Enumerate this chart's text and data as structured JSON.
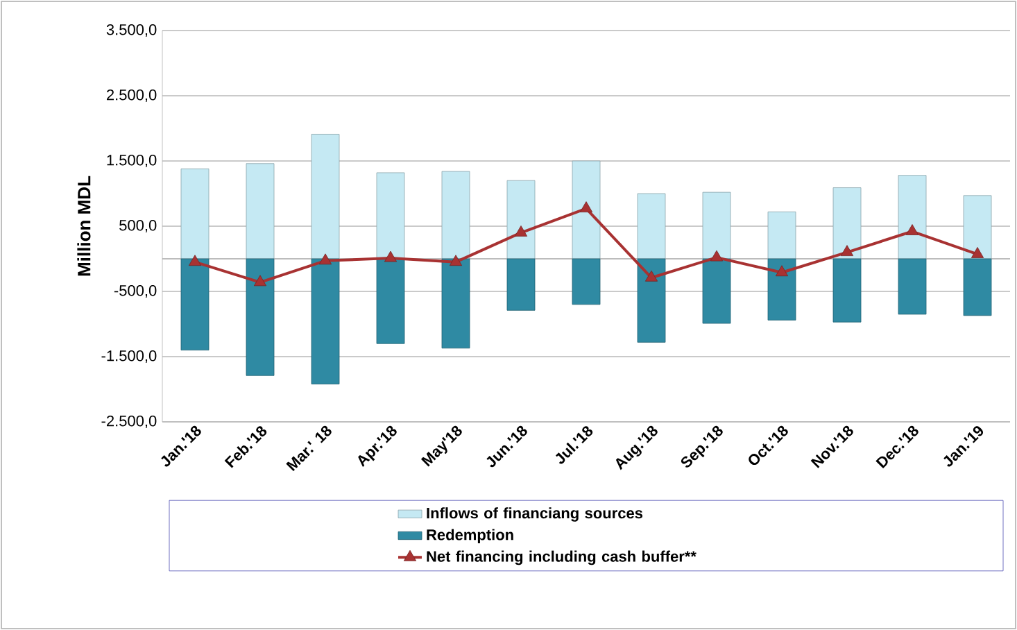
{
  "chart_data": {
    "type": "bar",
    "ylabel": "Million MDL",
    "categories": [
      "Jan.'18",
      "Feb.'18",
      "Mar.' 18",
      "Apr.'18",
      "May'18",
      "Jun.'18",
      "Jul.'18",
      "Aug.'18",
      "Sep.'18",
      "Oct.'18",
      "Nov.'18",
      "Dec.'18",
      "Jan.'19"
    ],
    "series": [
      {
        "name": "Inflows of financiang sources",
        "color": "#c5e9f3",
        "values": [
          1380,
          1460,
          1910,
          1320,
          1340,
          1200,
          1500,
          1000,
          1020,
          720,
          1090,
          1280,
          970
        ]
      },
      {
        "name": "Redemption",
        "color": "#2f8aa3",
        "values": [
          -1400,
          -1790,
          -1920,
          -1300,
          -1370,
          -790,
          -700,
          -1280,
          -990,
          -940,
          -970,
          -850,
          -870
        ]
      },
      {
        "name": "Net financing including cash buffer**",
        "type": "line",
        "marker": "triangle",
        "color": "#a83232",
        "values": [
          -50,
          -360,
          -30,
          10,
          -50,
          400,
          770,
          -290,
          20,
          -210,
          100,
          420,
          70
        ]
      }
    ],
    "ylim": [
      -2500,
      3500
    ],
    "yticks": [
      {
        "value": -2500,
        "label": "-2.500,0"
      },
      {
        "value": -1500,
        "label": "-1.500,0"
      },
      {
        "value": -500,
        "label": "-500,0"
      },
      {
        "value": 500,
        "label": "500,0"
      },
      {
        "value": 1500,
        "label": "1.500,0"
      },
      {
        "value": 2500,
        "label": "2.500,0"
      },
      {
        "value": 3500,
        "label": "3.500,0"
      }
    ],
    "grid": "y",
    "legend": "bottom",
    "stacked": true
  }
}
